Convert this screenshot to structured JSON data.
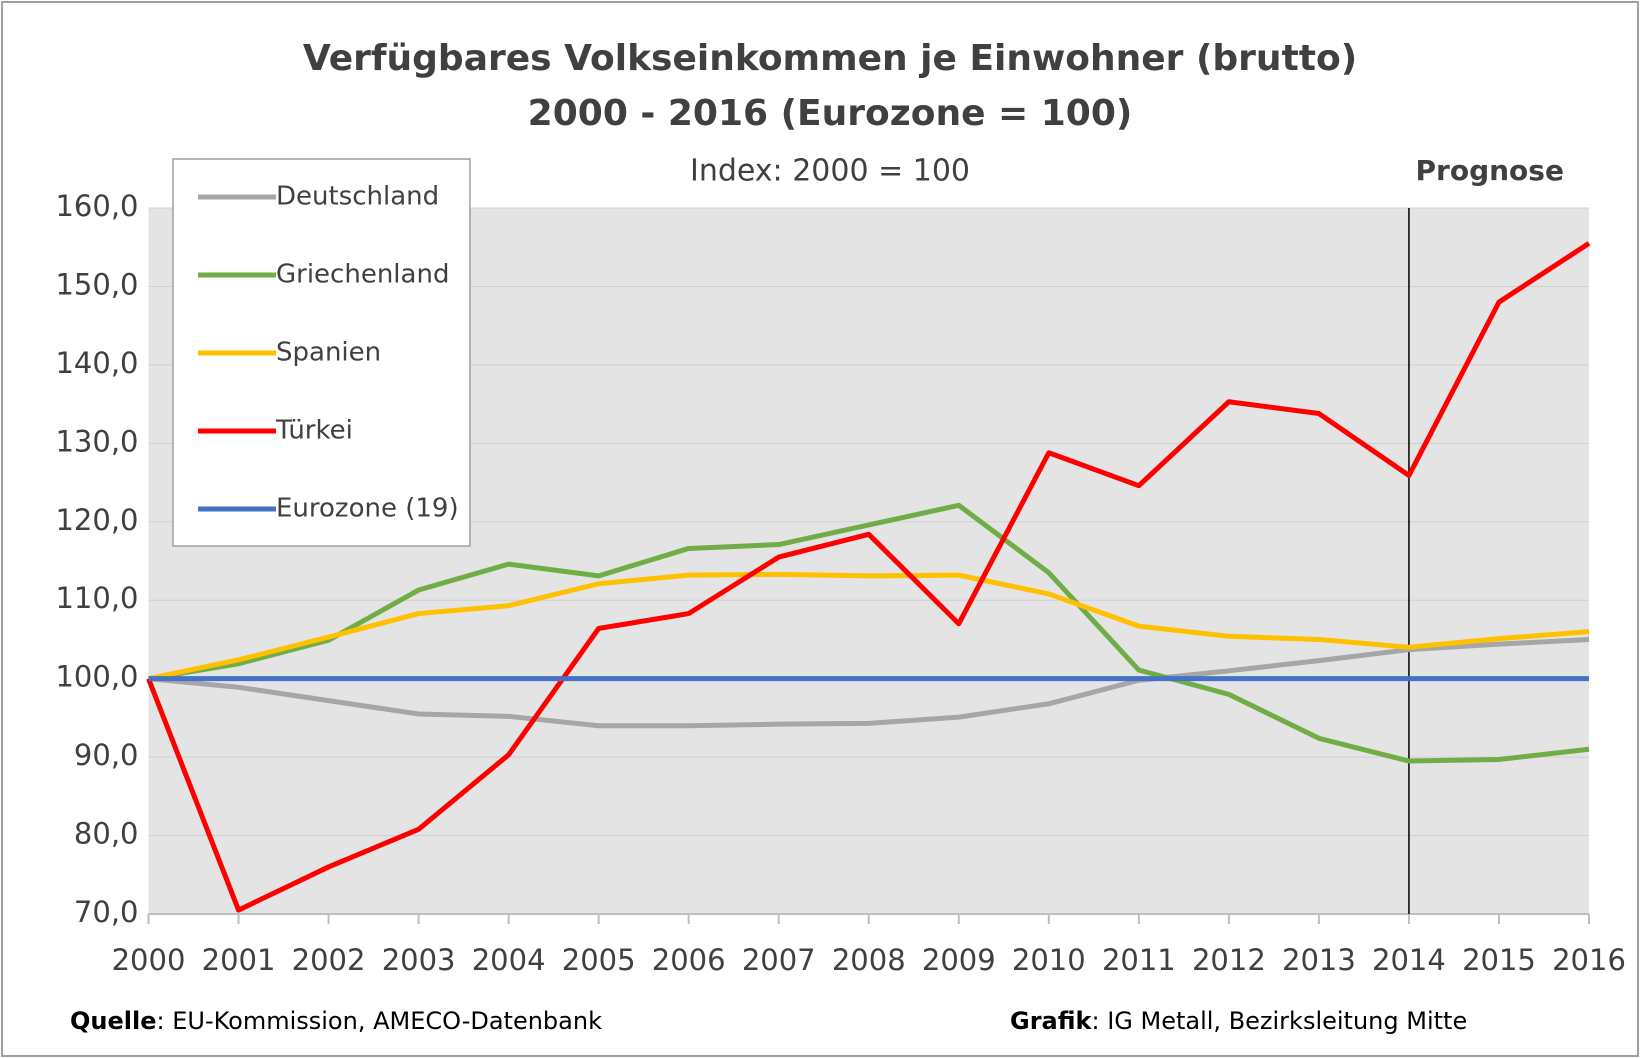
{
  "chart_data": {
    "type": "line",
    "title": "Verfügbares Volkseinkommen je Einwohner (brutto)",
    "subtitle": "2000 - 2016 (Eurozone = 100)",
    "note": "Index: 2000 = 100",
    "annotations": [
      {
        "text": "Prognose",
        "x": "2014"
      }
    ],
    "source_label": "Quelle",
    "source_text": ": EU-Kommission, AMECO-Datenbank",
    "credit_label": "Grafik",
    "credit_text": ": IG Metall, Bezirksleitung Mitte",
    "categories": [
      "2000",
      "2001",
      "2002",
      "2003",
      "2004",
      "2005",
      "2006",
      "2007",
      "2008",
      "2009",
      "2010",
      "2011",
      "2012",
      "2013",
      "2014",
      "2015",
      "2016"
    ],
    "series": [
      {
        "name": "Deutschland",
        "color": "#a6a6a6",
        "values": [
          100,
          98.9,
          97.2,
          95.5,
          95.2,
          94,
          94,
          94.2,
          94.3,
          95.1,
          96.8,
          99.8,
          101,
          102.3,
          103.7,
          104.4,
          105
        ]
      },
      {
        "name": "Griechenland",
        "color": "#70ad47",
        "values": [
          100,
          101.9,
          104.9,
          111.3,
          114.6,
          113.1,
          116.6,
          117.1,
          119.6,
          122.1,
          113.5,
          101.1,
          98,
          92.4,
          89.5,
          89.7,
          91
        ]
      },
      {
        "name": "Spanien",
        "color": "#ffc000",
        "values": [
          100,
          102.4,
          105.3,
          108.3,
          109.3,
          112.1,
          113.2,
          113.3,
          113.1,
          113.2,
          110.8,
          106.7,
          105.4,
          105,
          104,
          105.1,
          106
        ]
      },
      {
        "name": "Türkei",
        "color": "#ff0000",
        "values": [
          100,
          70.5,
          76,
          80.8,
          90.3,
          106.4,
          108.3,
          115.5,
          118.4,
          107,
          128.8,
          124.6,
          135.3,
          133.8,
          125.9,
          148,
          155.5
        ]
      },
      {
        "name": "Eurozone (19)",
        "color": "#4472c4",
        "values": [
          100,
          100,
          100,
          100,
          100,
          100,
          100,
          100,
          100,
          100,
          100,
          100,
          100,
          100,
          100,
          100,
          100
        ]
      }
    ],
    "ylim": [
      70,
      160
    ],
    "yticks": [
      {
        "value": 70,
        "label": "70,0"
      },
      {
        "value": 80,
        "label": "80,0"
      },
      {
        "value": 90,
        "label": "90,0"
      },
      {
        "value": 100,
        "label": "100,0"
      },
      {
        "value": 110,
        "label": "110,0"
      },
      {
        "value": 120,
        "label": "120,0"
      },
      {
        "value": 130,
        "label": "130,0"
      },
      {
        "value": 140,
        "label": "140,0"
      },
      {
        "value": 150,
        "label": "150,0"
      },
      {
        "value": 160,
        "label": "160,0"
      }
    ],
    "grid": true,
    "legend": "upper left"
  }
}
